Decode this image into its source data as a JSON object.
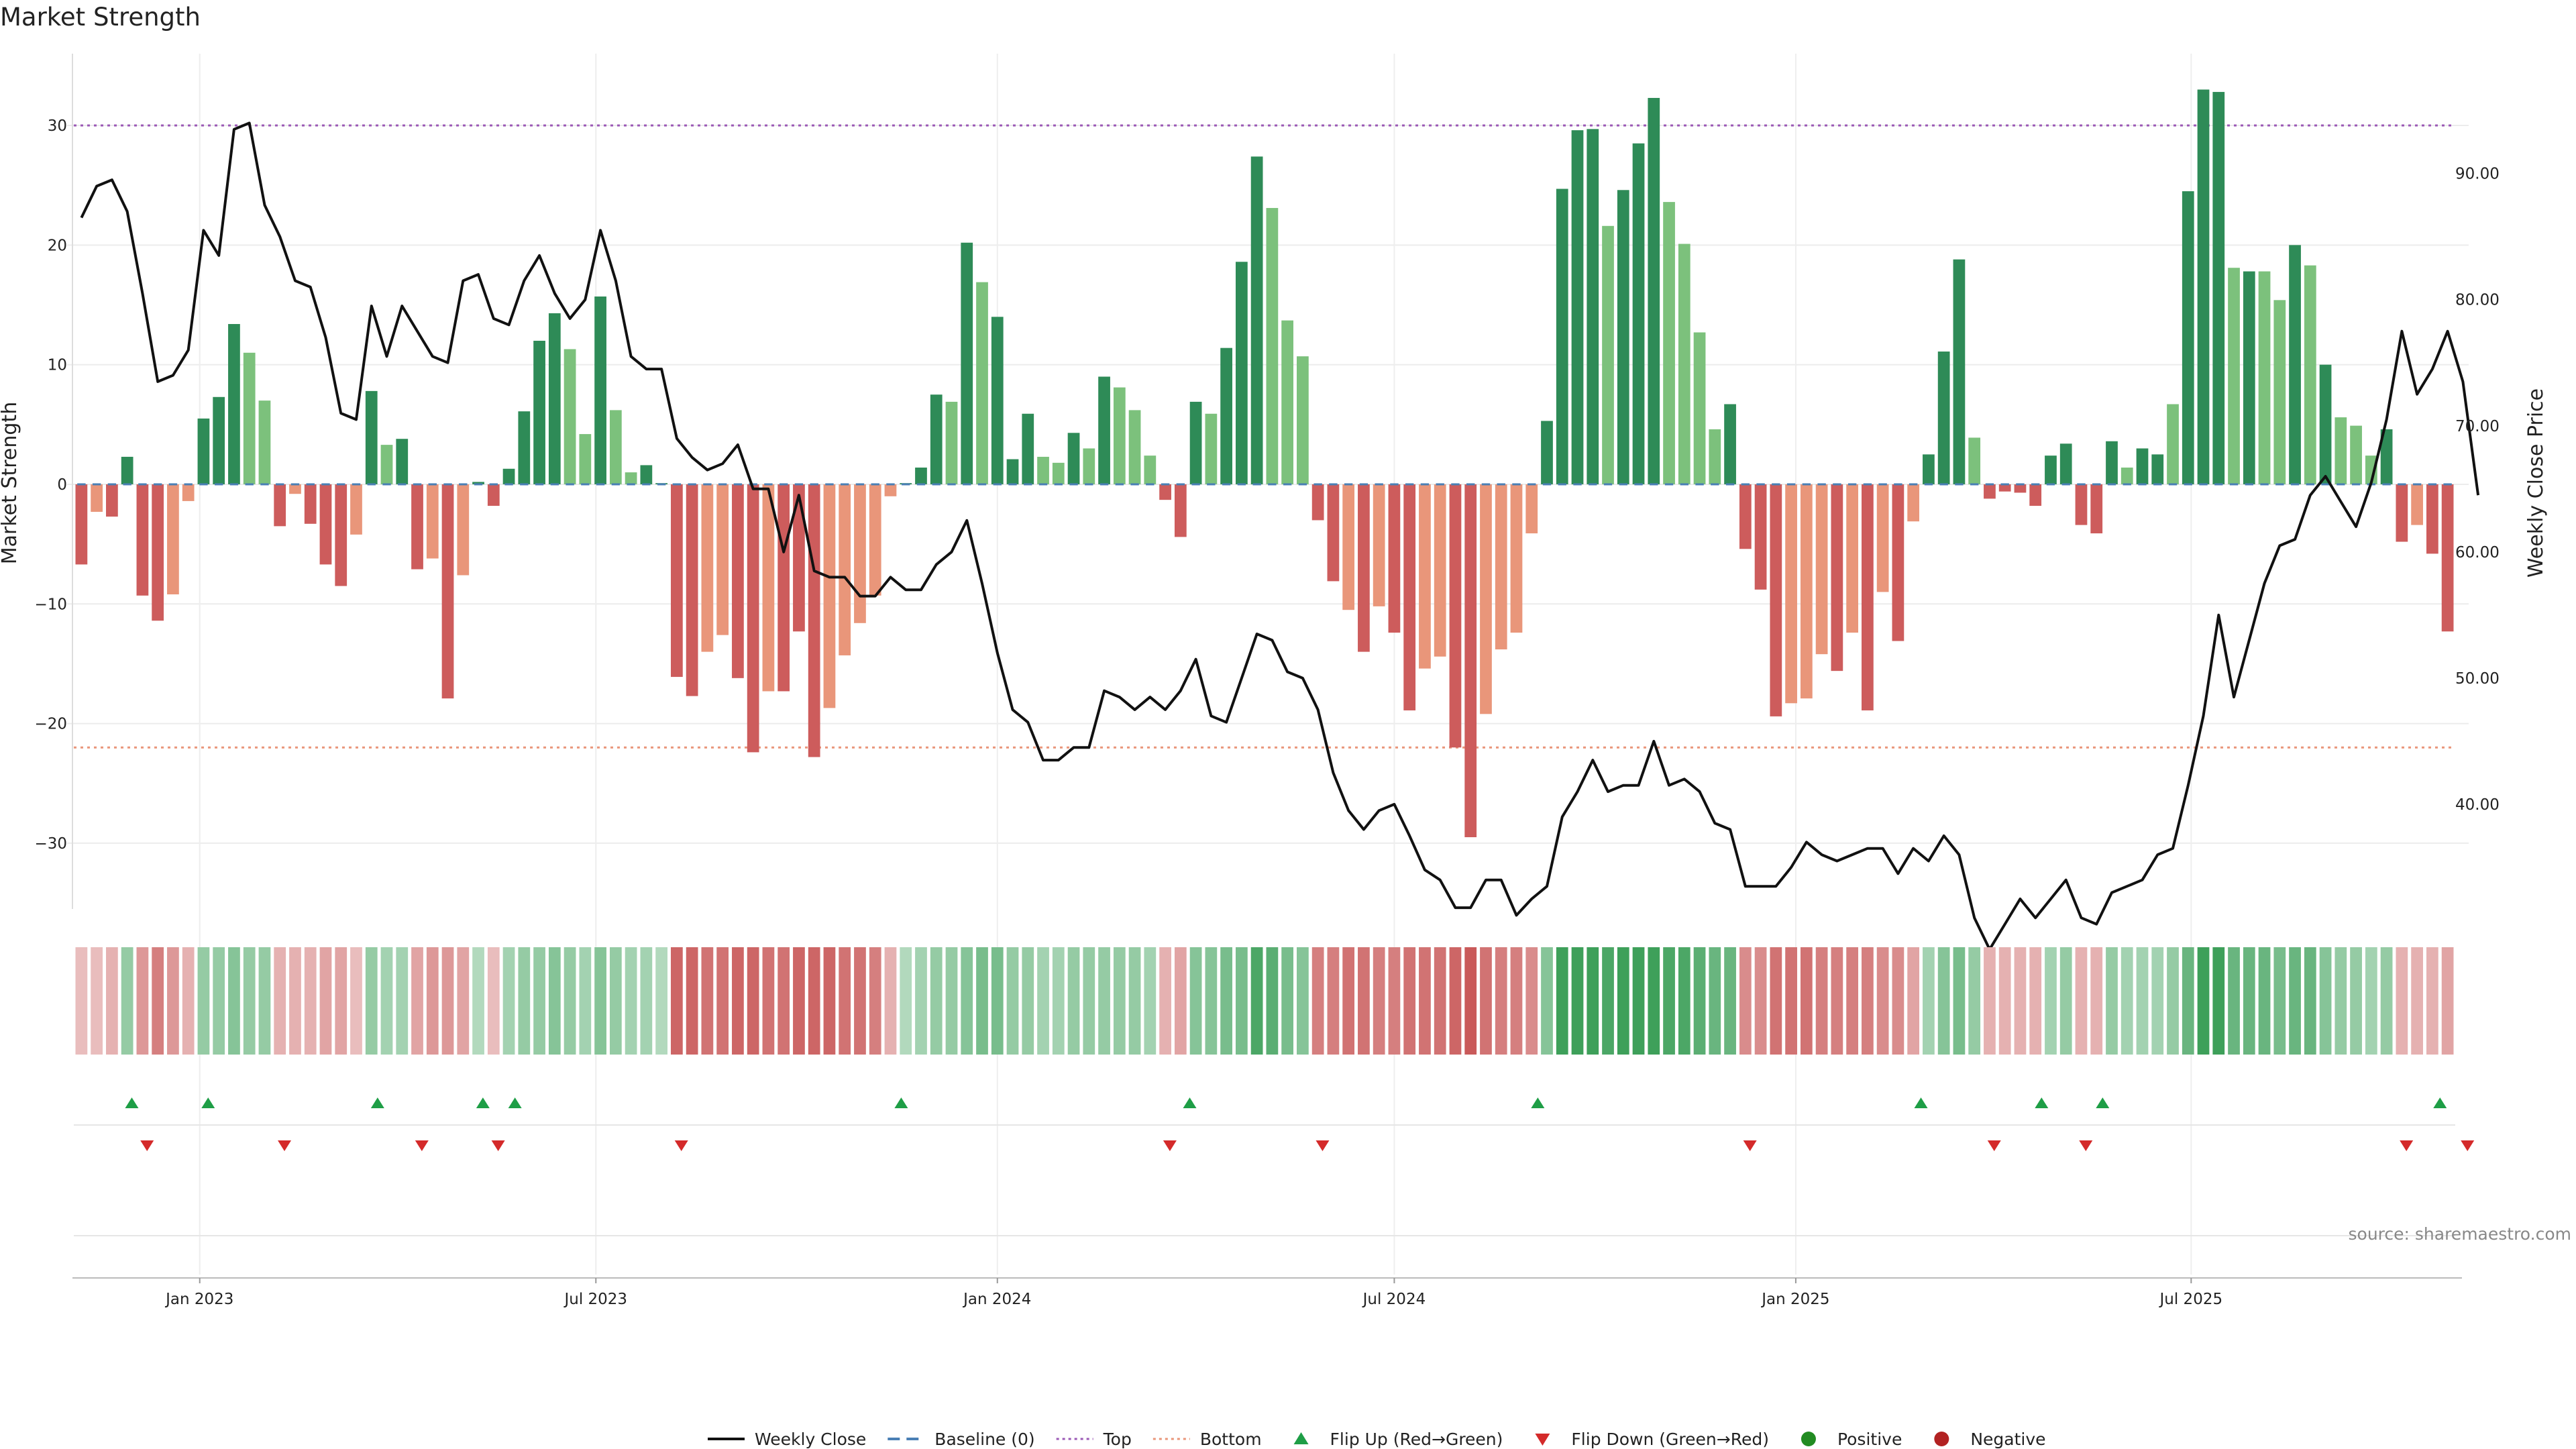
{
  "chart_data": {
    "type": "bar",
    "title": "Market Strength",
    "ylabel_left": "Market Strength",
    "ylabel_right": "Weekly Close Price",
    "source": "source: sharemaestro.com",
    "ylim_left": [
      -35.5,
      36
    ],
    "ylim_right": [
      31.7,
      99.5
    ],
    "top_threshold": 30,
    "bottom_threshold": -22,
    "yticks_left": [
      {
        "value": 30,
        "label": "30"
      },
      {
        "value": 20,
        "label": "20"
      },
      {
        "value": 10,
        "label": "10"
      },
      {
        "value": 0,
        "label": "0"
      },
      {
        "value": -10,
        "label": "−10"
      },
      {
        "value": -20,
        "label": "−20"
      },
      {
        "value": -30,
        "label": "−30"
      }
    ],
    "yticks_right": [
      {
        "value": 90,
        "label": "90.00"
      },
      {
        "value": 80,
        "label": "80.00"
      },
      {
        "value": 70,
        "label": "70.00"
      },
      {
        "value": 60,
        "label": "60.00"
      },
      {
        "value": 50,
        "label": "50.00"
      },
      {
        "value": 40,
        "label": "40.00"
      }
    ],
    "xticks": [
      {
        "week": 7.75,
        "label": "Jan 2023"
      },
      {
        "week": 33.7,
        "label": "Jul 2023"
      },
      {
        "week": 60,
        "label": "Jan 2024"
      },
      {
        "week": 86,
        "label": "Jul 2024"
      },
      {
        "week": 112.3,
        "label": "Jan 2025"
      },
      {
        "week": 138.2,
        "label": "Jul 2025"
      }
    ],
    "colors": {
      "pos_strong": "#2e8b57",
      "pos_weak": "#7cc17c",
      "neg_strong": "#cd5c5c",
      "neg_weak": "#e9967a",
      "price_line": "#111111",
      "top_line": "#9b59b6",
      "bottom_line": "#e9967a",
      "baseline": "#4a7fb5",
      "flip_up": "#1e9e46",
      "flip_down": "#d42a2a",
      "positive_dot": "#228b22",
      "negative_dot": "#b22222"
    },
    "strength": [
      -6.7,
      -2.3,
      -2.7,
      2.3,
      -9.3,
      -11.4,
      -9.2,
      -1.4,
      5.5,
      7.3,
      13.4,
      11.0,
      7.0,
      -3.5,
      -0.8,
      -3.3,
      -6.7,
      -8.5,
      -4.2,
      7.8,
      3.3,
      3.8,
      -7.1,
      -6.2,
      -17.9,
      -7.6,
      0.2,
      -1.8,
      1.3,
      6.1,
      12.0,
      14.3,
      11.3,
      4.2,
      15.7,
      6.2,
      1.0,
      1.6,
      0.1,
      -16.1,
      -17.7,
      -14.0,
      -12.6,
      -16.2,
      -22.4,
      -17.3,
      -17.3,
      -12.3,
      -22.8,
      -18.7,
      -14.3,
      -11.6,
      -9.3,
      -1.0,
      0.1,
      1.4,
      7.5,
      6.9,
      20.2,
      16.9,
      14.0,
      2.1,
      5.9,
      2.3,
      1.8,
      4.3,
      3.0,
      9.0,
      8.1,
      6.2,
      2.4,
      -1.3,
      -4.4,
      6.9,
      5.9,
      11.4,
      18.6,
      27.4,
      23.1,
      13.7,
      10.7,
      -3.0,
      -8.1,
      -10.5,
      -14.0,
      -10.2,
      -12.4,
      -18.9,
      -15.4,
      -14.4,
      -22.0,
      -29.5,
      -19.2,
      -13.8,
      -12.4,
      -4.1,
      5.3,
      24.7,
      29.6,
      29.7,
      21.6,
      24.6,
      28.5,
      32.3,
      23.6,
      20.1,
      12.7,
      4.6,
      6.7,
      -5.4,
      -8.8,
      -19.4,
      -18.3,
      -17.9,
      -14.2,
      -15.6,
      -12.4,
      -18.9,
      -9.0,
      -13.1,
      -3.1,
      2.5,
      11.1,
      18.8,
      3.9,
      -1.2,
      -0.6,
      -0.7,
      -1.8,
      2.4,
      3.4,
      -3.4,
      -4.1,
      3.6,
      1.4,
      3.0,
      2.5,
      6.7,
      24.5,
      33.0,
      32.8,
      18.1,
      17.8,
      17.8,
      15.4,
      20.0,
      18.3,
      10.0,
      5.6,
      4.9,
      2.4,
      4.6,
      -4.8,
      -3.4,
      -5.8,
      -12.3
    ],
    "bar_shades": [
      "s",
      "w",
      "s",
      "s",
      "s",
      "s",
      "w",
      "w",
      "s",
      "s",
      "s",
      "w",
      "w",
      "s",
      "w",
      "s",
      "s",
      "s",
      "w",
      "s",
      "w",
      "s",
      "s",
      "w",
      "s",
      "w",
      "s",
      "s",
      "s",
      "s",
      "s",
      "s",
      "w",
      "w",
      "s",
      "w",
      "w",
      "s",
      "s",
      "s",
      "s",
      "w",
      "w",
      "s",
      "s",
      "w",
      "s",
      "s",
      "s",
      "w",
      "w",
      "w",
      "w",
      "w",
      "s",
      "s",
      "s",
      "w",
      "s",
      "w",
      "s",
      "s",
      "s",
      "w",
      "w",
      "s",
      "w",
      "s",
      "w",
      "w",
      "w",
      "s",
      "s",
      "s",
      "w",
      "s",
      "s",
      "s",
      "w",
      "w",
      "w",
      "s",
      "s",
      "w",
      "s",
      "w",
      "s",
      "s",
      "w",
      "w",
      "s",
      "s",
      "w",
      "w",
      "w",
      "w",
      "s",
      "s",
      "s",
      "s",
      "w",
      "s",
      "s",
      "s",
      "w",
      "w",
      "w",
      "w",
      "s",
      "s",
      "s",
      "s",
      "w",
      "w",
      "w",
      "s",
      "w",
      "s",
      "w",
      "s",
      "w",
      "s",
      "s",
      "s",
      "w",
      "s",
      "s",
      "s",
      "s",
      "s",
      "s",
      "s",
      "s",
      "s",
      "w",
      "s",
      "s",
      "w",
      "s",
      "s",
      "s",
      "w",
      "s",
      "w",
      "w",
      "s",
      "w",
      "s",
      "w",
      "w",
      "w",
      "s",
      "s",
      "w",
      "s",
      "s",
      "s"
    ],
    "heat_intensity": [
      0.2,
      0.2,
      0.3,
      0.4,
      0.5,
      0.7,
      0.5,
      0.3,
      0.4,
      0.4,
      0.5,
      0.4,
      0.4,
      0.3,
      0.3,
      0.3,
      0.4,
      0.4,
      0.2,
      0.4,
      0.3,
      0.3,
      0.4,
      0.5,
      0.5,
      0.4,
      0.2,
      0.2,
      0.3,
      0.4,
      0.4,
      0.5,
      0.4,
      0.3,
      0.5,
      0.4,
      0.3,
      0.3,
      0.2,
      0.9,
      0.9,
      0.8,
      0.8,
      0.9,
      0.9,
      0.8,
      0.8,
      0.9,
      0.9,
      0.9,
      0.8,
      0.8,
      0.7,
      0.3,
      0.2,
      0.3,
      0.4,
      0.4,
      0.5,
      0.6,
      0.6,
      0.4,
      0.4,
      0.3,
      0.3,
      0.4,
      0.4,
      0.4,
      0.4,
      0.4,
      0.3,
      0.3,
      0.4,
      0.5,
      0.5,
      0.6,
      0.6,
      0.9,
      0.8,
      0.6,
      0.5,
      0.7,
      0.7,
      0.8,
      0.8,
      0.7,
      0.7,
      0.8,
      0.8,
      0.8,
      0.9,
      1.0,
      0.8,
      0.7,
      0.7,
      0.6,
      0.5,
      1.0,
      1.0,
      1.0,
      0.9,
      1.0,
      1.0,
      1.0,
      0.9,
      0.9,
      0.8,
      0.7,
      0.7,
      0.6,
      0.6,
      0.8,
      0.8,
      0.8,
      0.7,
      0.7,
      0.7,
      0.7,
      0.6,
      0.6,
      0.4,
      0.3,
      0.5,
      0.6,
      0.4,
      0.3,
      0.3,
      0.3,
      0.3,
      0.3,
      0.4,
      0.3,
      0.3,
      0.4,
      0.3,
      0.3,
      0.3,
      0.4,
      0.7,
      1.0,
      1.0,
      0.7,
      0.7,
      0.7,
      0.6,
      0.7,
      0.7,
      0.5,
      0.4,
      0.4,
      0.3,
      0.4,
      0.3,
      0.3,
      0.3,
      0.4
    ],
    "price": [
      86.5,
      89.0,
      89.5,
      87.0,
      80.5,
      73.5,
      74.0,
      76.0,
      85.5,
      83.5,
      93.5,
      94.0,
      87.5,
      85.0,
      81.5,
      81.0,
      77.0,
      71.0,
      70.5,
      79.5,
      75.5,
      79.5,
      77.5,
      75.5,
      75.0,
      81.5,
      82.0,
      78.5,
      78.0,
      81.5,
      83.5,
      80.5,
      78.5,
      80.0,
      85.5,
      81.5,
      75.5,
      74.5,
      74.5,
      69.0,
      67.5,
      66.5,
      67.0,
      68.5,
      65.0,
      65.0,
      60.0,
      64.5,
      58.5,
      58.0,
      58.0,
      56.5,
      56.5,
      58.0,
      57.0,
      57.0,
      59.0,
      60.0,
      62.5,
      57.5,
      52.0,
      47.5,
      46.5,
      43.5,
      43.5,
      44.5,
      44.5,
      49.0,
      48.5,
      47.5,
      48.5,
      47.5,
      49.0,
      51.5,
      47.0,
      46.5,
      50.0,
      53.5,
      53.0,
      50.5,
      50.0,
      47.5,
      42.5,
      39.5,
      38.0,
      39.5,
      40.0,
      37.5,
      34.8,
      34.0,
      31.8,
      31.8,
      34.0,
      34.0,
      31.2,
      32.5,
      33.5,
      39.0,
      41.0,
      43.5,
      41.0,
      41.5,
      41.5,
      45.0,
      41.5,
      42.0,
      41.0,
      38.5,
      38.0,
      33.5,
      33.5,
      33.5,
      35.0,
      37.0,
      36.0,
      35.5,
      36.0,
      36.5,
      36.5,
      34.5,
      36.5,
      35.5,
      37.5,
      36.0,
      31.0,
      28.5,
      30.5,
      32.5,
      31.0,
      32.5,
      34.0,
      31.0,
      30.5,
      33.0,
      33.5,
      34.0,
      36.0,
      36.5,
      41.5,
      47.0,
      55.0,
      48.5,
      53.0,
      57.5,
      60.5,
      61.0,
      64.5,
      66.0,
      64.0,
      62.0,
      65.5,
      70.5,
      77.5,
      72.5,
      74.5,
      77.5,
      73.5,
      64.5
    ],
    "flip_up_weeks": [
      3.3,
      8.3,
      19.4,
      26.3,
      28.4,
      53.7,
      72.6,
      95.4,
      120.5,
      128.4,
      132.4,
      154.5
    ],
    "flip_down_weeks": [
      4.3,
      13.3,
      22.3,
      27.3,
      39.3,
      71.3,
      81.3,
      109.3,
      125.3,
      131.3,
      152.3,
      156.3
    ],
    "legend": [
      {
        "kind": "line",
        "label": "Weekly Close"
      },
      {
        "kind": "dash",
        "label": "Baseline (0)"
      },
      {
        "kind": "dot-line-top",
        "label": "Top"
      },
      {
        "kind": "dot-line-bottom",
        "label": "Bottom"
      },
      {
        "kind": "tri-up",
        "label": "Flip Up (Red→Green)"
      },
      {
        "kind": "tri-down",
        "label": "Flip Down (Green→Red)"
      },
      {
        "kind": "dot-pos",
        "label": "Positive"
      },
      {
        "kind": "dot-neg",
        "label": "Negative"
      }
    ]
  }
}
